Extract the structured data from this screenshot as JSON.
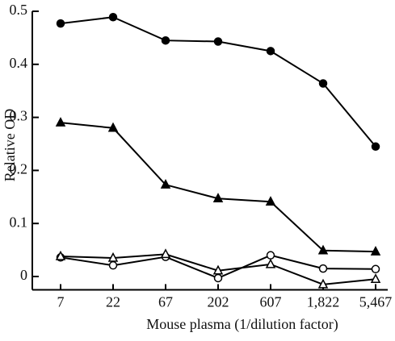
{
  "chart_data": {
    "type": "line",
    "x_label": "Mouse plasma (1/dilution factor)",
    "y_label": "Relative OD",
    "categories": [
      "7",
      "22",
      "67",
      "202",
      "607",
      "1,822",
      "5,467"
    ],
    "ylim": [
      -0.025,
      0.5
    ],
    "yticks": [
      0,
      0.1,
      0.2,
      0.3,
      0.4,
      0.5
    ],
    "series": [
      {
        "color": "#000000",
        "marker": "circle",
        "filled": true,
        "values": [
          0.477,
          0.489,
          0.445,
          0.443,
          0.425,
          0.364,
          0.245
        ]
      },
      {
        "color": "#000000",
        "marker": "triangle",
        "filled": true,
        "values": [
          0.29,
          0.28,
          0.173,
          0.147,
          0.141,
          0.049,
          0.047
        ]
      },
      {
        "color": "#000000",
        "marker": "circle",
        "filled": false,
        "values": [
          0.036,
          0.021,
          0.037,
          -0.003,
          0.04,
          0.015,
          0.014
        ]
      },
      {
        "color": "#000000",
        "marker": "triangle",
        "filled": false,
        "values": [
          0.038,
          0.035,
          0.042,
          0.011,
          0.023,
          -0.015,
          -0.005
        ]
      }
    ]
  }
}
